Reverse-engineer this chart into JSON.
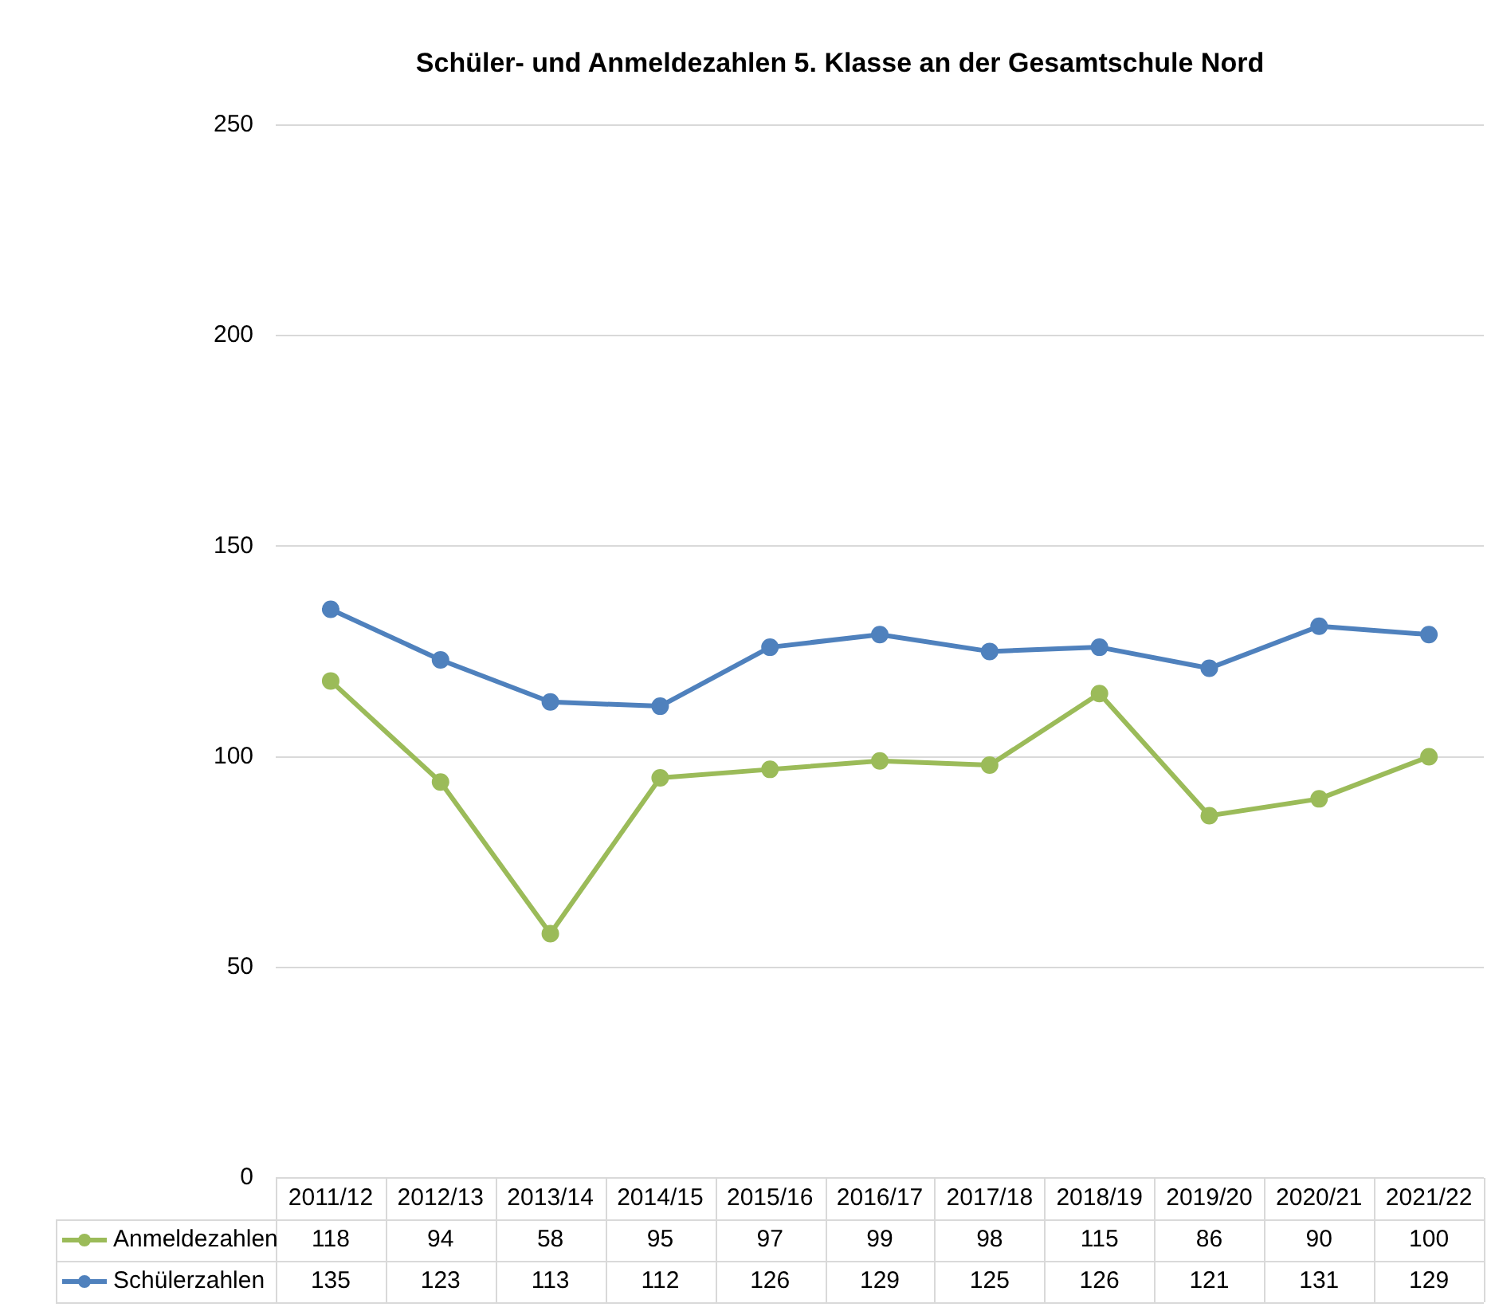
{
  "chart_data": {
    "type": "line",
    "title": "Schüler- und Anmeldezahlen 5. Klasse an der Gesamtschule Nord",
    "categories": [
      "2011/12",
      "2012/13",
      "2013/14",
      "2014/15",
      "2015/16",
      "2016/17",
      "2017/18",
      "2018/19",
      "2019/20",
      "2020/21",
      "2021/22"
    ],
    "series": [
      {
        "name": "Anmeldezahlen",
        "color": "#9bbb59",
        "values": [
          118,
          94,
          58,
          95,
          97,
          99,
          98,
          115,
          86,
          90,
          100
        ]
      },
      {
        "name": "Schülerzahlen",
        "color": "#4f81bd",
        "values": [
          135,
          123,
          113,
          112,
          126,
          129,
          125,
          126,
          121,
          131,
          129
        ]
      }
    ],
    "ylim": [
      0,
      250
    ],
    "yticks": [
      0,
      50,
      100,
      150,
      200,
      250
    ],
    "grid": "y",
    "marker": "circle",
    "line_style": "solid",
    "legend": "bottom",
    "data_labels": true
  }
}
